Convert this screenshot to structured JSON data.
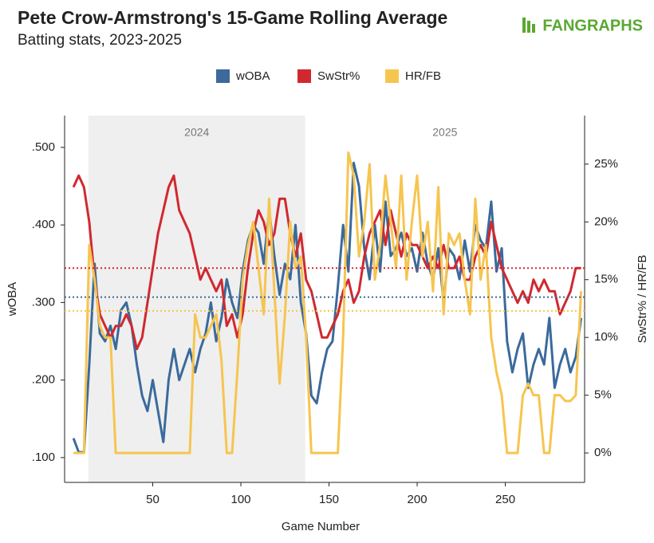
{
  "chart_data": {
    "type": "line",
    "title": "Pete Crow-Armstrong's 15-Game Rolling Average",
    "subtitle": "Batting stats, 2023-2025",
    "logo": "FANGRAPHS",
    "x_label": "Game Number",
    "y_label": "wOBA",
    "y2_label": "SwStr% / HR/FB",
    "xlim": [
      0,
      295
    ],
    "xticks": [
      50,
      100,
      150,
      200,
      250
    ],
    "ylim": [
      0.068,
      0.541
    ],
    "yticks": [
      {
        "value": 0.1,
        "label": ".100"
      },
      {
        "value": 0.2,
        "label": ".200"
      },
      {
        "value": 0.3,
        "label": ".300"
      },
      {
        "value": 0.4,
        "label": ".400"
      },
      {
        "value": 0.5,
        "label": ".500"
      }
    ],
    "y2lim": [
      -2.55,
      29.2
    ],
    "y2ticks": [
      {
        "value": 0,
        "label": "0%"
      },
      {
        "value": 5,
        "label": "5%"
      },
      {
        "value": 10,
        "label": "10%"
      },
      {
        "value": 15,
        "label": "15%"
      },
      {
        "value": 20,
        "label": "20%"
      },
      {
        "value": 25,
        "label": "25%"
      }
    ],
    "seasons": [
      {
        "label": "2024",
        "start": 13.5,
        "end": 136.5,
        "shaded": true
      },
      {
        "label": "2025",
        "start": 136.5,
        "end": 295,
        "shaded": false
      }
    ],
    "x": [
      5,
      8,
      11,
      14,
      17,
      20,
      23,
      26,
      29,
      32,
      35,
      38,
      41,
      44,
      47,
      50,
      53,
      56,
      59,
      62,
      65,
      68,
      71,
      74,
      77,
      80,
      83,
      86,
      89,
      92,
      95,
      98,
      101,
      104,
      107,
      110,
      113,
      116,
      119,
      122,
      125,
      128,
      131,
      134,
      137,
      140,
      143,
      146,
      149,
      152,
      155,
      158,
      161,
      164,
      167,
      170,
      173,
      176,
      179,
      182,
      185,
      188,
      191,
      194,
      197,
      200,
      203,
      206,
      209,
      212,
      215,
      218,
      221,
      224,
      227,
      230,
      233,
      236,
      239,
      242,
      245,
      248,
      251,
      254,
      257,
      260,
      263,
      266,
      269,
      272,
      275,
      278,
      281,
      284,
      287,
      290,
      293
    ],
    "series": [
      {
        "name": "wOBA",
        "color": "#3b6a9b",
        "axis": "y",
        "mean": 0.307,
        "values": [
          0.125,
          0.107,
          0.107,
          0.22,
          0.35,
          0.26,
          0.25,
          0.27,
          0.24,
          0.29,
          0.3,
          0.27,
          0.22,
          0.18,
          0.16,
          0.2,
          0.16,
          0.12,
          0.2,
          0.24,
          0.2,
          0.22,
          0.24,
          0.21,
          0.24,
          0.26,
          0.3,
          0.25,
          0.28,
          0.33,
          0.3,
          0.28,
          0.34,
          0.38,
          0.4,
          0.39,
          0.35,
          0.42,
          0.36,
          0.31,
          0.35,
          0.33,
          0.4,
          0.3,
          0.26,
          0.18,
          0.17,
          0.21,
          0.24,
          0.25,
          0.32,
          0.4,
          0.34,
          0.48,
          0.45,
          0.37,
          0.33,
          0.4,
          0.34,
          0.43,
          0.36,
          0.37,
          0.39,
          0.36,
          0.37,
          0.34,
          0.39,
          0.35,
          0.33,
          0.37,
          0.3,
          0.37,
          0.36,
          0.33,
          0.38,
          0.34,
          0.4,
          0.38,
          0.37,
          0.43,
          0.34,
          0.37,
          0.25,
          0.21,
          0.24,
          0.26,
          0.19,
          0.22,
          0.24,
          0.22,
          0.28,
          0.19,
          0.22,
          0.24,
          0.21,
          0.23,
          0.28
        ]
      },
      {
        "name": "SwStr%",
        "color": "#d1282f",
        "axis": "y2",
        "mean": 16.0,
        "values": [
          23,
          24,
          23,
          20,
          15,
          12,
          11,
          10,
          11,
          11,
          12,
          11,
          9,
          10,
          13,
          16,
          19,
          21,
          23,
          24,
          21,
          20,
          19,
          17,
          15,
          16,
          15,
          14,
          15,
          11,
          12,
          10,
          12,
          16,
          19,
          21,
          20,
          18,
          19,
          22,
          22,
          19,
          17,
          19,
          15,
          14,
          12,
          10,
          10,
          11,
          12,
          14,
          15,
          13,
          14,
          17,
          19,
          20,
          21,
          18,
          21,
          19,
          17,
          19,
          18,
          18,
          17,
          16,
          17,
          16,
          18,
          16,
          16,
          17,
          15,
          15,
          17,
          18,
          17,
          20,
          18,
          16,
          15,
          14,
          13,
          14,
          13,
          15,
          14,
          15,
          14,
          14,
          12,
          13,
          14,
          16,
          16
        ]
      },
      {
        "name": "HR/FB",
        "color": "#f6c550",
        "axis": "y2",
        "mean": 12.3,
        "values": [
          0,
          0,
          0,
          18,
          15,
          11,
          10,
          10,
          0,
          0,
          0,
          0,
          0,
          0,
          0,
          0,
          0,
          0,
          0,
          0,
          0,
          0,
          0,
          12,
          10,
          10,
          11,
          12,
          8,
          0,
          0,
          7,
          15,
          18,
          20,
          16,
          12,
          22,
          14,
          6,
          12,
          20,
          16,
          17,
          10,
          0,
          0,
          0,
          0,
          0,
          0,
          10,
          26,
          24,
          17,
          20,
          25,
          15,
          18,
          24,
          20,
          16,
          24,
          15,
          20,
          24,
          17,
          20,
          14,
          23,
          12,
          19,
          18,
          19,
          15,
          12,
          22,
          15,
          18,
          10,
          7,
          5,
          0,
          0,
          0,
          5,
          6,
          5,
          5,
          0,
          0,
          5,
          5,
          4.5,
          4.5,
          5,
          14
        ]
      }
    ]
  }
}
